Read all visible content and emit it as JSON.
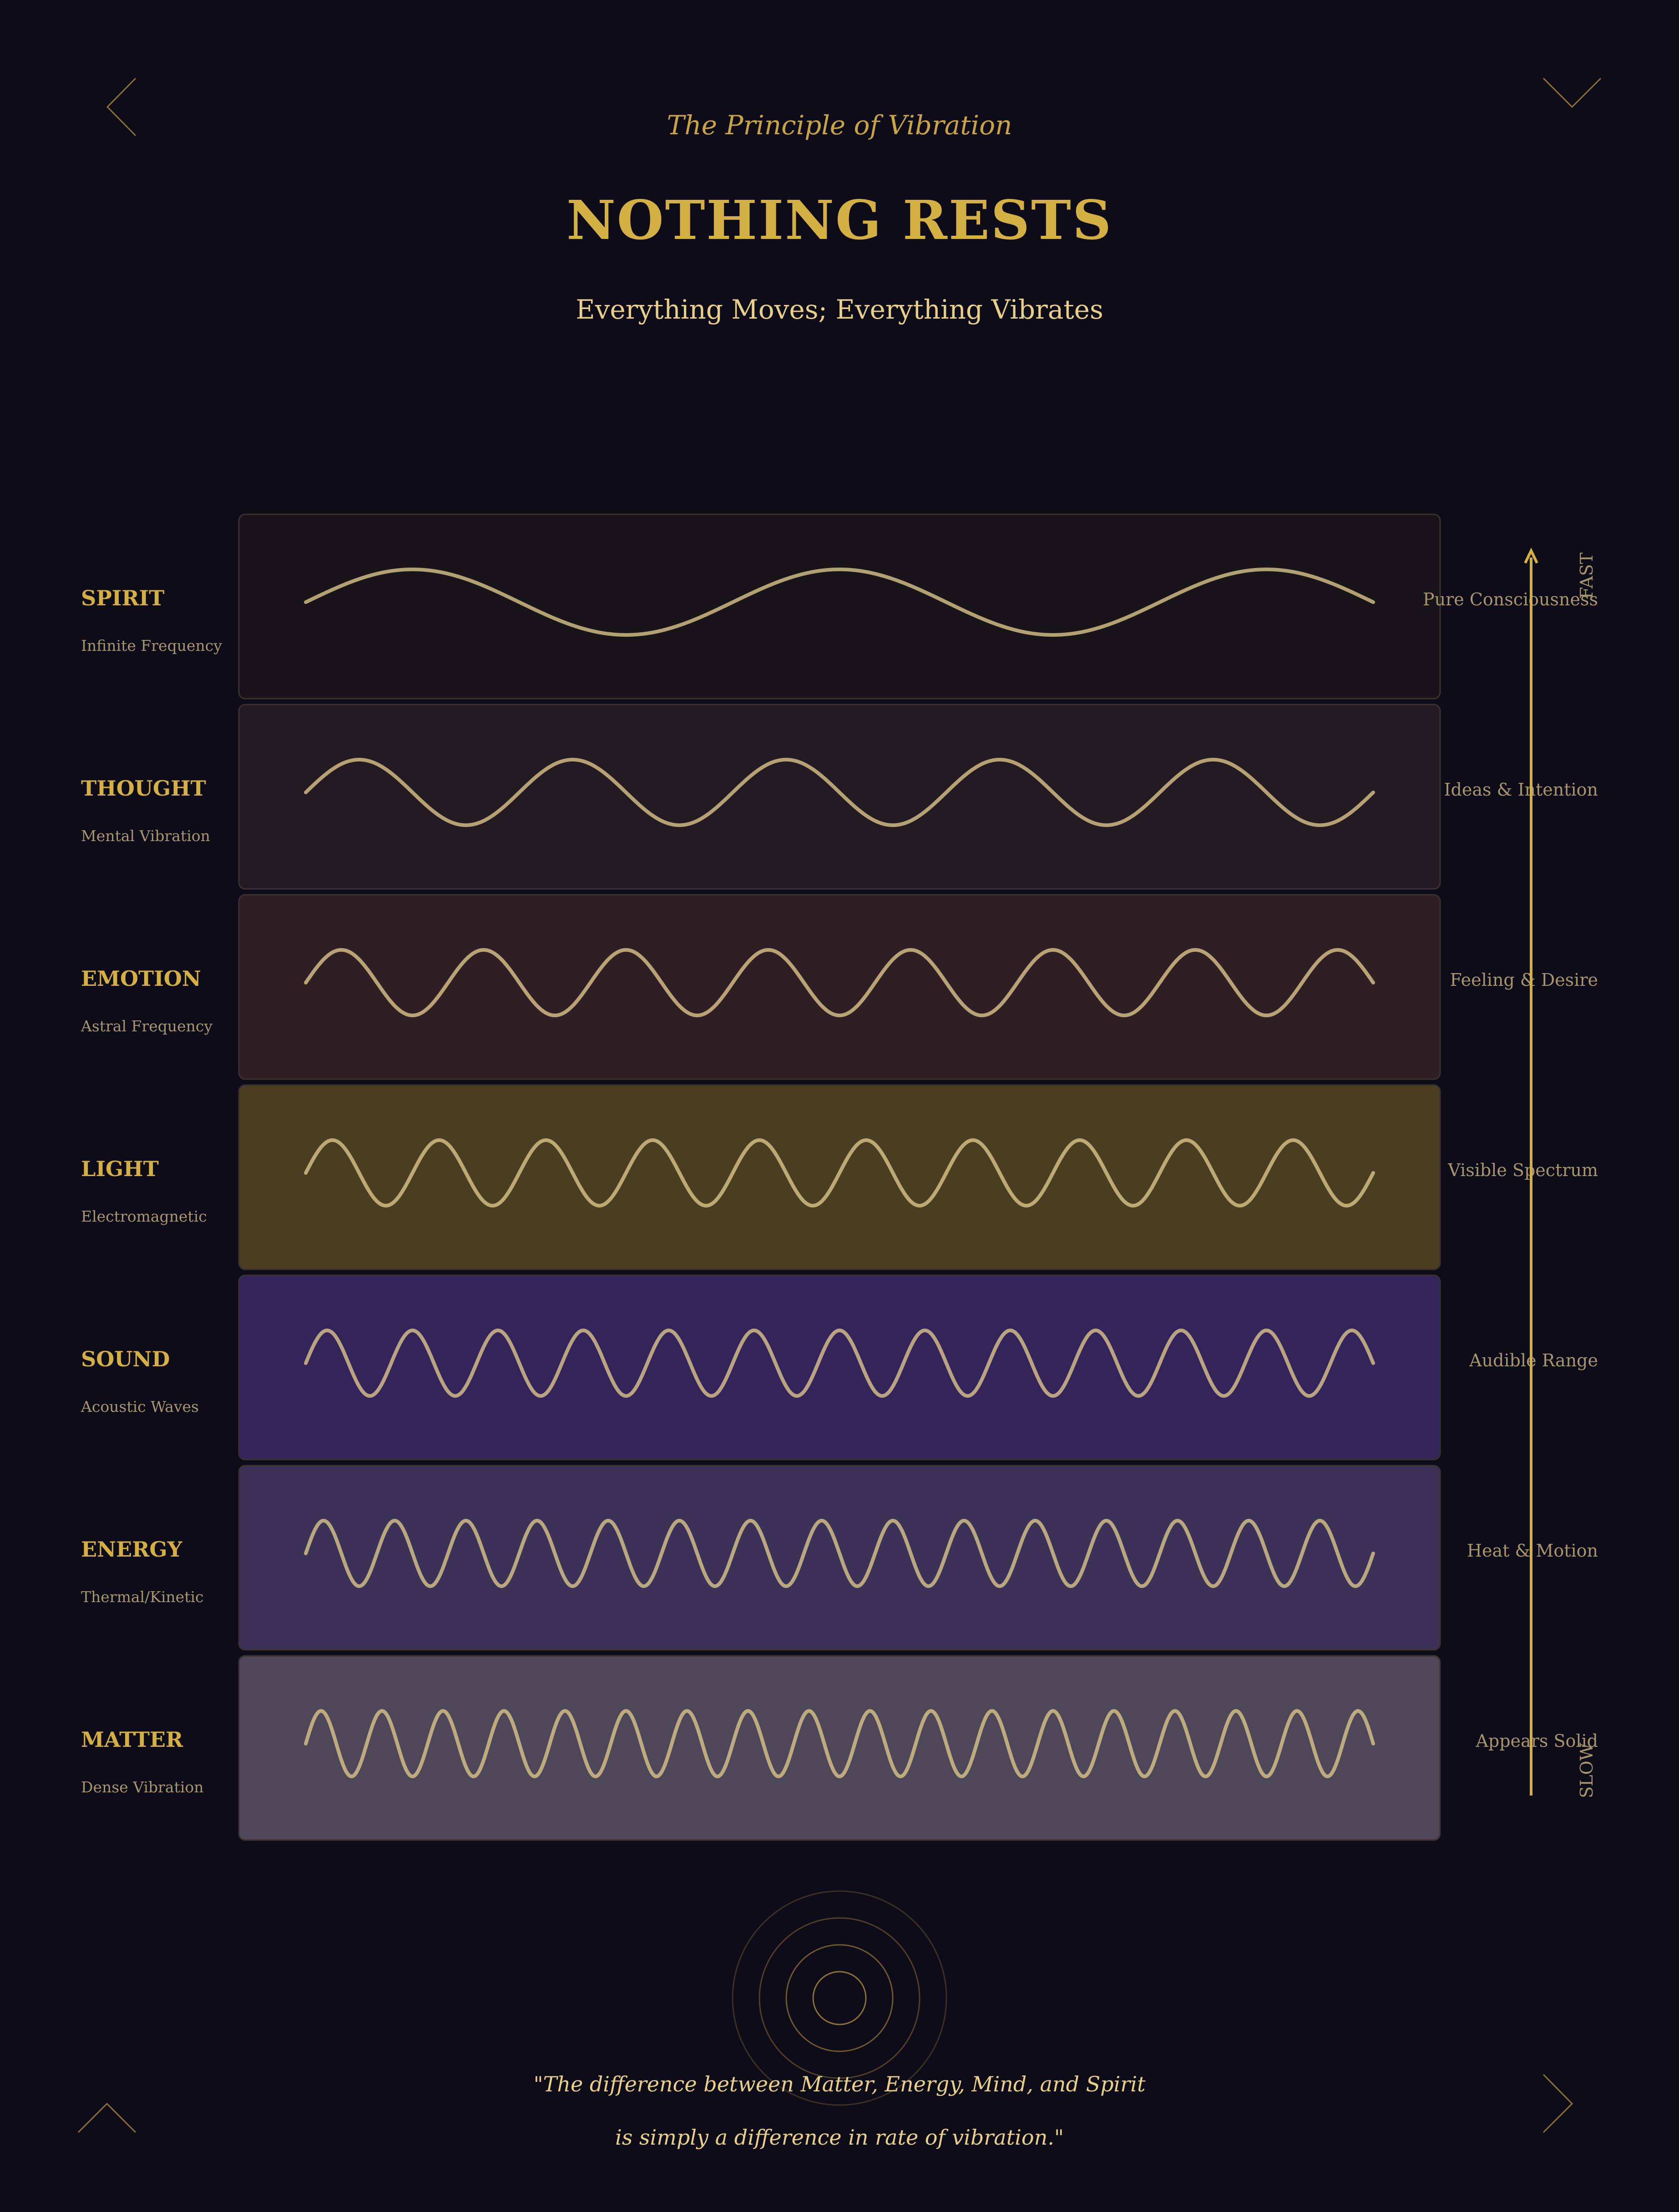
{
  "header": {
    "subtitle": "The Principle of Vibration",
    "title": "NOTHING RESTS",
    "tagline": "Everything Moves; Everything Vibrates"
  },
  "colors": {
    "background": "#0e0c18",
    "gold": "#d4af44",
    "gold_light": "#e9d08a",
    "muted_text": "#a69670",
    "wave": "#d9c48a"
  },
  "levels": [
    {
      "name": "SPIRIT",
      "subtitle": "Infinite Frequency",
      "description": "Pure Consciousness",
      "cycles": 2.5,
      "fill": "#181418"
    },
    {
      "name": "THOUGHT",
      "subtitle": "Mental Vibration",
      "description": "Ideas & Intention",
      "cycles": 5,
      "fill": "#241a22"
    },
    {
      "name": "EMOTION",
      "subtitle": "Astral Frequency",
      "description": "Feeling & Desire",
      "cycles": 7.5,
      "fill": "#2f1f25"
    },
    {
      "name": "LIGHT",
      "subtitle": "Electromagnetic",
      "description": "Visible Spectrum",
      "cycles": 10,
      "fill": "#4b3d22"
    },
    {
      "name": "SOUND",
      "subtitle": "Acoustic Waves",
      "description": "Audible Range",
      "cycles": 12.5,
      "fill": "#33245a"
    },
    {
      "name": "ENERGY",
      "subtitle": "Thermal/Kinetic",
      "description": "Heat & Motion",
      "cycles": 15,
      "fill": "#3b3258"
    },
    {
      "name": "MATTER",
      "subtitle": "Dense Vibration",
      "description": "Appears Solid",
      "cycles": 17.5,
      "fill": "#4d4758"
    }
  ],
  "scale": {
    "top_label": "FAST",
    "bottom_label": "SLOW"
  },
  "quote": {
    "line1": "\"The difference between Matter, Energy, Mind, and Spirit",
    "line2": "is simply a difference in rate of vibration.\""
  }
}
